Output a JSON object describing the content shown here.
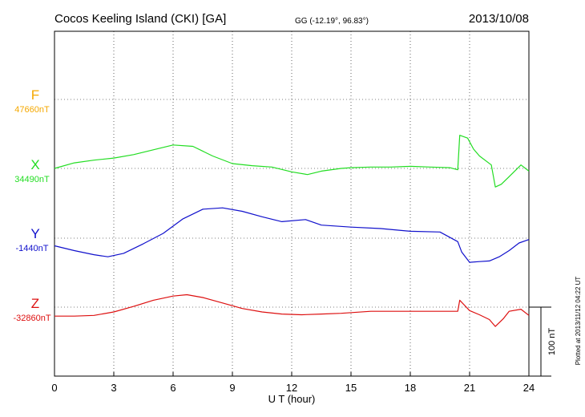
{
  "header": {
    "station": "Cocos Keeling Island (CKI)  [GA]",
    "coords": "GG (-12.19°,  96.83°)",
    "date": "2013/10/08"
  },
  "footer": {
    "plotted": "Plotted at 2013/11/12 04:22 UT"
  },
  "colors": {
    "F": "#f5a800",
    "X": "#22dd22",
    "Y": "#1010cc",
    "Z": "#dd1010"
  },
  "chart_data": {
    "type": "line",
    "xlabel": "U T (hour)",
    "xlim": [
      0,
      24
    ],
    "xticks": [
      "0",
      "3",
      "6",
      "9",
      "12",
      "15",
      "18",
      "21",
      "24"
    ],
    "scale_bar": {
      "label": "100 nT",
      "value_nT": 100
    },
    "series": [
      {
        "name": "F",
        "baseline_label": "47660nT",
        "baseline_nT": 47660,
        "x": [],
        "values": []
      },
      {
        "name": "X",
        "baseline_label": "34490nT",
        "baseline_nT": 34490,
        "x": [
          0,
          1,
          2,
          3,
          4,
          5,
          6,
          7,
          8,
          9,
          10,
          11,
          12,
          12.8,
          13.5,
          14.5,
          15,
          16,
          17,
          18,
          19,
          20,
          20.4,
          20.5,
          20.9,
          21.2,
          21.5,
          22.1,
          22.3,
          22.6,
          23,
          23.6,
          24
        ],
        "values": [
          34490,
          34498,
          34502,
          34505,
          34510,
          34517,
          34524,
          34522,
          34508,
          34497,
          34494,
          34492,
          34485,
          34481,
          34486,
          34490,
          34491,
          34492,
          34492,
          34493,
          34492,
          34491,
          34488,
          34538,
          34534,
          34518,
          34508,
          34495,
          34463,
          34467,
          34478,
          34495,
          34486
        ]
      },
      {
        "name": "Y",
        "baseline_label": "-1440nT",
        "baseline_nT": -1440,
        "x": [
          0,
          1,
          2,
          2.7,
          3.5,
          4.5,
          5.5,
          6.5,
          7.5,
          8.5,
          9.5,
          10.5,
          11.5,
          12.7,
          13.5,
          15,
          16.5,
          18,
          19.5,
          20.4,
          20.6,
          21,
          21.5,
          22,
          22.5,
          23,
          23.5,
          24
        ],
        "values": [
          -1451,
          -1458,
          -1464,
          -1467,
          -1462,
          -1448,
          -1433,
          -1412,
          -1398,
          -1396,
          -1401,
          -1409,
          -1416,
          -1413,
          -1421,
          -1424,
          -1426,
          -1430,
          -1431,
          -1445,
          -1460,
          -1475,
          -1474,
          -1473,
          -1467,
          -1458,
          -1447,
          -1442
        ]
      },
      {
        "name": "Z",
        "baseline_label": "-32860nT",
        "baseline_nT": -32860,
        "x": [
          0,
          1,
          2,
          3,
          4,
          5,
          6,
          6.7,
          7.5,
          8.5,
          9.5,
          10.5,
          11.5,
          12.5,
          13.5,
          14.5,
          16,
          17.5,
          19,
          20.4,
          20.5,
          21,
          21.5,
          22,
          22.3,
          22.7,
          23,
          23.6,
          24
        ],
        "values": [
          -32873,
          -32873,
          -32872,
          -32867,
          -32859,
          -32850,
          -32844,
          -32842,
          -32846,
          -32854,
          -32862,
          -32867,
          -32870,
          -32871,
          -32870,
          -32869,
          -32866,
          -32866,
          -32866,
          -32866,
          -32850,
          -32865,
          -32871,
          -32878,
          -32888,
          -32877,
          -32866,
          -32863,
          -32872
        ]
      }
    ]
  }
}
